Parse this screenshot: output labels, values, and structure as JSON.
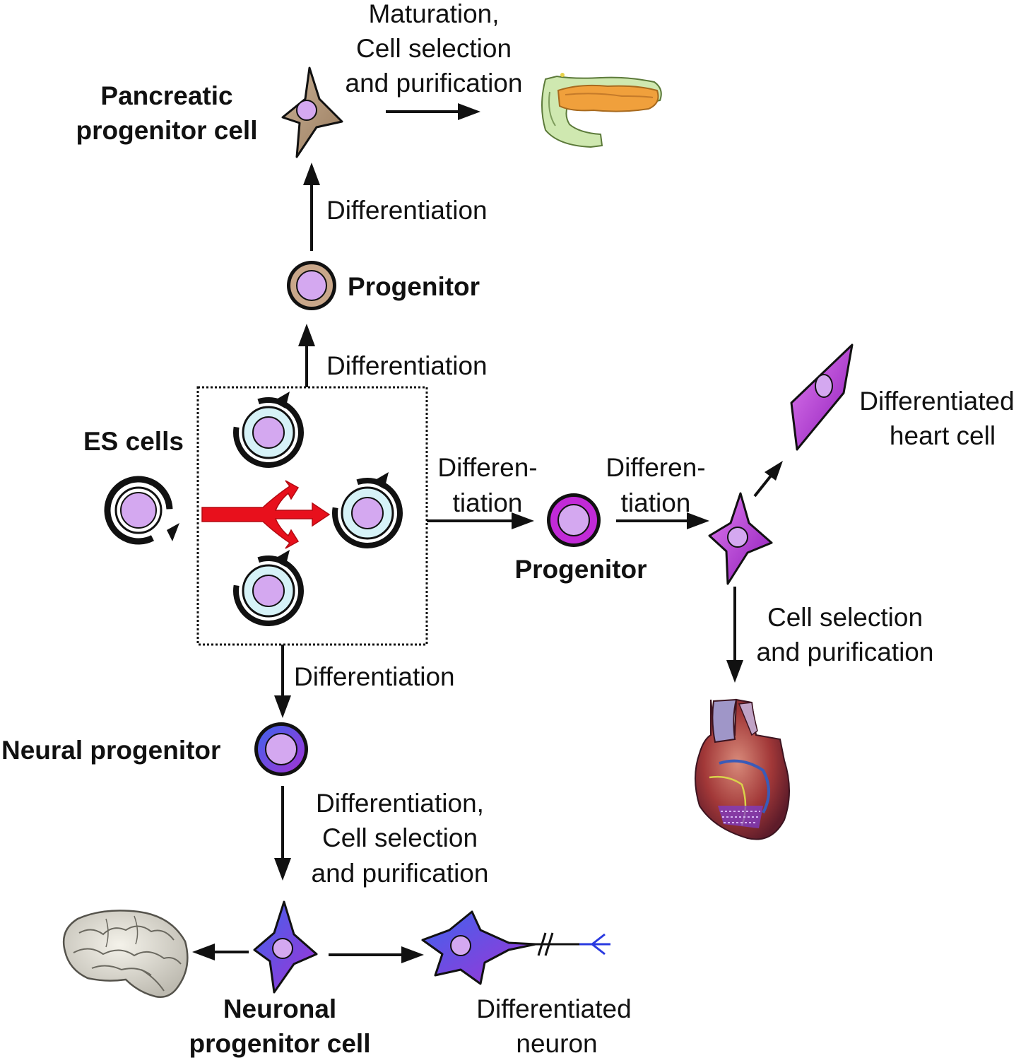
{
  "labels": {
    "maturation_1": "Maturation,",
    "maturation_2": "Cell selection",
    "maturation_3": "and purification",
    "pancreatic_1": "Pancreatic",
    "pancreatic_2": "progenitor cell",
    "diff_up_top": "Differentiation",
    "progenitor_top": "Progenitor",
    "diff_up_bottom": "Differentiation",
    "es_cells": "ES cells",
    "differen_1": "Differen-",
    "tiation_1": "tiation",
    "differen_2": "Differen-",
    "tiation_2": "tiation",
    "progenitor_right": "Progenitor",
    "heart_cell_1": "Differentiated",
    "heart_cell_2": "heart cell",
    "cell_sel_1": "Cell selection",
    "cell_sel_2": "and purification",
    "diff_down": "Differentiation",
    "neural_progenitor": "Neural progenitor",
    "neuro_step_1": "Differentiation,",
    "neuro_step_2": "Cell selection",
    "neuro_step_3": "and purification",
    "neuronal_1": "Neuronal",
    "neuronal_2": "progenitor cell",
    "neuron_1": "Differentiated",
    "neuron_2": "neuron"
  },
  "colors": {
    "nucleus": "#d4a8f0",
    "pancreatic": "#b59a7c",
    "es_ring": "#d6f2f7",
    "red_arrow": "#e8101c",
    "heart_cell": "#c22ad8",
    "neural_blue": "#4a5ee6",
    "neural_purple": "#9a35d6",
    "pancreas_organ": "#f0a03c",
    "heart_organ": "#a23838"
  }
}
